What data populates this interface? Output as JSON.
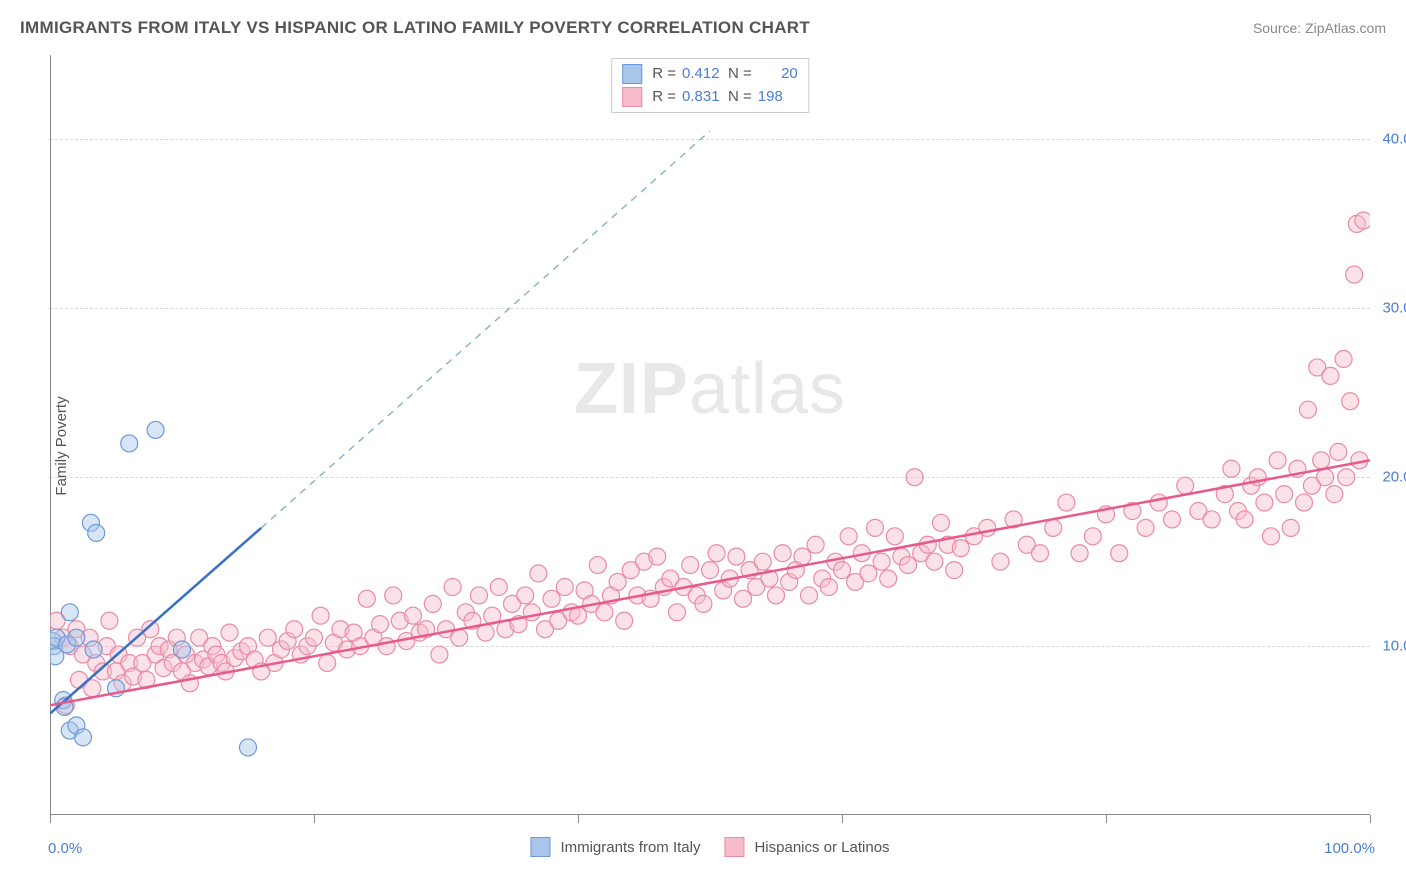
{
  "header": {
    "title": "IMMIGRANTS FROM ITALY VS HISPANIC OR LATINO FAMILY POVERTY CORRELATION CHART",
    "source": "Source: ZipAtlas.com"
  },
  "ylabel": "Family Poverty",
  "watermark_prefix": "ZIP",
  "watermark_suffix": "atlas",
  "chart": {
    "type": "scatter",
    "xlim": [
      0,
      100
    ],
    "ylim": [
      0,
      45
    ],
    "y_gridlines": [
      10,
      20,
      30,
      40
    ],
    "y_tick_labels": [
      "10.0%",
      "20.0%",
      "30.0%",
      "40.0%"
    ],
    "x_tick_positions": [
      0,
      20,
      40,
      60,
      80,
      100
    ],
    "x_tick_labels_ends": [
      "0.0%",
      "100.0%"
    ],
    "background_color": "#ffffff",
    "grid_color": "#d8d8d8",
    "axis_color": "#888888",
    "tick_label_color": "#4a7dd4",
    "marker_radius": 8.5,
    "marker_opacity": 0.45
  },
  "series": {
    "blue": {
      "label": "Immigrants from Italy",
      "fill": "#a9c5ea",
      "stroke": "#6b9bd8",
      "trend_color": "#3a6fc7",
      "trend_dash_color": "#8db5c9",
      "R": "0.412",
      "N": "20",
      "trend_solid": {
        "x1": 0,
        "y1": 6.0,
        "x2": 16,
        "y2": 17.0
      },
      "trend_dash": {
        "x1": 16,
        "y1": 17.0,
        "x2": 50,
        "y2": 40.5
      },
      "points": [
        [
          0.2,
          10.3
        ],
        [
          0.3,
          10.0
        ],
        [
          0.4,
          9.4
        ],
        [
          0.5,
          10.5
        ],
        [
          1.0,
          6.8
        ],
        [
          1.1,
          6.4
        ],
        [
          1.3,
          10.1
        ],
        [
          1.5,
          12.0
        ],
        [
          1.5,
          5.0
        ],
        [
          2.0,
          5.3
        ],
        [
          2.0,
          10.5
        ],
        [
          2.5,
          4.6
        ],
        [
          3.1,
          17.3
        ],
        [
          3.3,
          9.8
        ],
        [
          3.5,
          16.7
        ],
        [
          5.0,
          7.5
        ],
        [
          6.0,
          22.0
        ],
        [
          8.0,
          22.8
        ],
        [
          10.0,
          9.8
        ],
        [
          15.0,
          4.0
        ]
      ]
    },
    "pink": {
      "label": "Hispanics or Latinos",
      "fill": "#f7bccb",
      "stroke": "#e98ba6",
      "trend_color": "#e75a8d",
      "R": "0.831",
      "N": "198",
      "trend_solid": {
        "x1": 0,
        "y1": 6.5,
        "x2": 100,
        "y2": 21.0
      },
      "points": [
        [
          0.5,
          11.5
        ],
        [
          1.0,
          10.5
        ],
        [
          1.2,
          6.5
        ],
        [
          1.5,
          10.0
        ],
        [
          2.0,
          11.0
        ],
        [
          2.2,
          8.0
        ],
        [
          2.5,
          9.5
        ],
        [
          3.0,
          10.5
        ],
        [
          3.2,
          7.5
        ],
        [
          3.5,
          9.0
        ],
        [
          4.0,
          8.5
        ],
        [
          4.3,
          10.0
        ],
        [
          4.5,
          11.5
        ],
        [
          5.0,
          8.5
        ],
        [
          5.2,
          9.5
        ],
        [
          5.5,
          7.8
        ],
        [
          6.0,
          9.0
        ],
        [
          6.3,
          8.2
        ],
        [
          6.6,
          10.5
        ],
        [
          7.0,
          9.0
        ],
        [
          7.3,
          8.0
        ],
        [
          7.6,
          11.0
        ],
        [
          8.0,
          9.5
        ],
        [
          8.3,
          10.0
        ],
        [
          8.6,
          8.7
        ],
        [
          9.0,
          9.8
        ],
        [
          9.3,
          9.0
        ],
        [
          9.6,
          10.5
        ],
        [
          10.0,
          8.5
        ],
        [
          10.3,
          9.5
        ],
        [
          10.6,
          7.8
        ],
        [
          11.0,
          9.0
        ],
        [
          11.3,
          10.5
        ],
        [
          11.6,
          9.2
        ],
        [
          12.0,
          8.8
        ],
        [
          12.3,
          10.0
        ],
        [
          12.6,
          9.5
        ],
        [
          13.0,
          9.0
        ],
        [
          13.3,
          8.5
        ],
        [
          13.6,
          10.8
        ],
        [
          14.0,
          9.3
        ],
        [
          14.5,
          9.7
        ],
        [
          15.0,
          10.0
        ],
        [
          15.5,
          9.2
        ],
        [
          16.0,
          8.5
        ],
        [
          16.5,
          10.5
        ],
        [
          17.0,
          9.0
        ],
        [
          17.5,
          9.8
        ],
        [
          18.0,
          10.3
        ],
        [
          18.5,
          11.0
        ],
        [
          19.0,
          9.5
        ],
        [
          19.5,
          10.0
        ],
        [
          20.0,
          10.5
        ],
        [
          20.5,
          11.8
        ],
        [
          21.0,
          9.0
        ],
        [
          21.5,
          10.2
        ],
        [
          22.0,
          11.0
        ],
        [
          22.5,
          9.8
        ],
        [
          23.0,
          10.8
        ],
        [
          23.5,
          10.0
        ],
        [
          24.0,
          12.8
        ],
        [
          24.5,
          10.5
        ],
        [
          25.0,
          11.3
        ],
        [
          25.5,
          10.0
        ],
        [
          26.0,
          13.0
        ],
        [
          26.5,
          11.5
        ],
        [
          27.0,
          10.3
        ],
        [
          27.5,
          11.8
        ],
        [
          28.0,
          10.8
        ],
        [
          28.5,
          11.0
        ],
        [
          29.0,
          12.5
        ],
        [
          29.5,
          9.5
        ],
        [
          30.0,
          11.0
        ],
        [
          30.5,
          13.5
        ],
        [
          31.0,
          10.5
        ],
        [
          31.5,
          12.0
        ],
        [
          32.0,
          11.5
        ],
        [
          32.5,
          13.0
        ],
        [
          33.0,
          10.8
        ],
        [
          33.5,
          11.8
        ],
        [
          34.0,
          13.5
        ],
        [
          34.5,
          11.0
        ],
        [
          35.0,
          12.5
        ],
        [
          35.5,
          11.3
        ],
        [
          36.0,
          13.0
        ],
        [
          36.5,
          12.0
        ],
        [
          37.0,
          14.3
        ],
        [
          37.5,
          11.0
        ],
        [
          38.0,
          12.8
        ],
        [
          38.5,
          11.5
        ],
        [
          39.0,
          13.5
        ],
        [
          39.5,
          12.0
        ],
        [
          40.0,
          11.8
        ],
        [
          40.5,
          13.3
        ],
        [
          41.0,
          12.5
        ],
        [
          41.5,
          14.8
        ],
        [
          42.0,
          12.0
        ],
        [
          42.5,
          13.0
        ],
        [
          43.0,
          13.8
        ],
        [
          43.5,
          11.5
        ],
        [
          44.0,
          14.5
        ],
        [
          44.5,
          13.0
        ],
        [
          45.0,
          15.0
        ],
        [
          45.5,
          12.8
        ],
        [
          46.0,
          15.3
        ],
        [
          46.5,
          13.5
        ],
        [
          47.0,
          14.0
        ],
        [
          47.5,
          12.0
        ],
        [
          48.0,
          13.5
        ],
        [
          48.5,
          14.8
        ],
        [
          49.0,
          13.0
        ],
        [
          49.5,
          12.5
        ],
        [
          50.0,
          14.5
        ],
        [
          50.5,
          15.5
        ],
        [
          51.0,
          13.3
        ],
        [
          51.5,
          14.0
        ],
        [
          52.0,
          15.3
        ],
        [
          52.5,
          12.8
        ],
        [
          53.0,
          14.5
        ],
        [
          53.5,
          13.5
        ],
        [
          54.0,
          15.0
        ],
        [
          54.5,
          14.0
        ],
        [
          55.0,
          13.0
        ],
        [
          55.5,
          15.5
        ],
        [
          56.0,
          13.8
        ],
        [
          56.5,
          14.5
        ],
        [
          57.0,
          15.3
        ],
        [
          57.5,
          13.0
        ],
        [
          58.0,
          16.0
        ],
        [
          58.5,
          14.0
        ],
        [
          59.0,
          13.5
        ],
        [
          59.5,
          15.0
        ],
        [
          60.0,
          14.5
        ],
        [
          60.5,
          16.5
        ],
        [
          61.0,
          13.8
        ],
        [
          61.5,
          15.5
        ],
        [
          62.0,
          14.3
        ],
        [
          62.5,
          17.0
        ],
        [
          63.0,
          15.0
        ],
        [
          63.5,
          14.0
        ],
        [
          64.0,
          16.5
        ],
        [
          64.5,
          15.3
        ],
        [
          65.0,
          14.8
        ],
        [
          65.5,
          20.0
        ],
        [
          66.0,
          15.5
        ],
        [
          66.5,
          16.0
        ],
        [
          67.0,
          15.0
        ],
        [
          67.5,
          17.3
        ],
        [
          68.0,
          16.0
        ],
        [
          68.5,
          14.5
        ],
        [
          69.0,
          15.8
        ],
        [
          70.0,
          16.5
        ],
        [
          71.0,
          17.0
        ],
        [
          72.0,
          15.0
        ],
        [
          73.0,
          17.5
        ],
        [
          74.0,
          16.0
        ],
        [
          75.0,
          15.5
        ],
        [
          76.0,
          17.0
        ],
        [
          77.0,
          18.5
        ],
        [
          78.0,
          15.5
        ],
        [
          79.0,
          16.5
        ],
        [
          80.0,
          17.8
        ],
        [
          81.0,
          15.5
        ],
        [
          82.0,
          18.0
        ],
        [
          83.0,
          17.0
        ],
        [
          84.0,
          18.5
        ],
        [
          85.0,
          17.5
        ],
        [
          86.0,
          19.5
        ],
        [
          87.0,
          18.0
        ],
        [
          88.0,
          17.5
        ],
        [
          89.0,
          19.0
        ],
        [
          89.5,
          20.5
        ],
        [
          90.0,
          18.0
        ],
        [
          90.5,
          17.5
        ],
        [
          91.0,
          19.5
        ],
        [
          91.5,
          20.0
        ],
        [
          92.0,
          18.5
        ],
        [
          92.5,
          16.5
        ],
        [
          93.0,
          21.0
        ],
        [
          93.5,
          19.0
        ],
        [
          94.0,
          17.0
        ],
        [
          94.5,
          20.5
        ],
        [
          95.0,
          18.5
        ],
        [
          95.3,
          24.0
        ],
        [
          95.6,
          19.5
        ],
        [
          96.0,
          26.5
        ],
        [
          96.3,
          21.0
        ],
        [
          96.6,
          20.0
        ],
        [
          97.0,
          26.0
        ],
        [
          97.3,
          19.0
        ],
        [
          97.6,
          21.5
        ],
        [
          98.0,
          27.0
        ],
        [
          98.2,
          20.0
        ],
        [
          98.5,
          24.5
        ],
        [
          98.8,
          32.0
        ],
        [
          99.0,
          35.0
        ],
        [
          99.2,
          21.0
        ],
        [
          99.5,
          35.2
        ]
      ]
    }
  },
  "legend_labels": {
    "R": "R =",
    "N": "N ="
  }
}
